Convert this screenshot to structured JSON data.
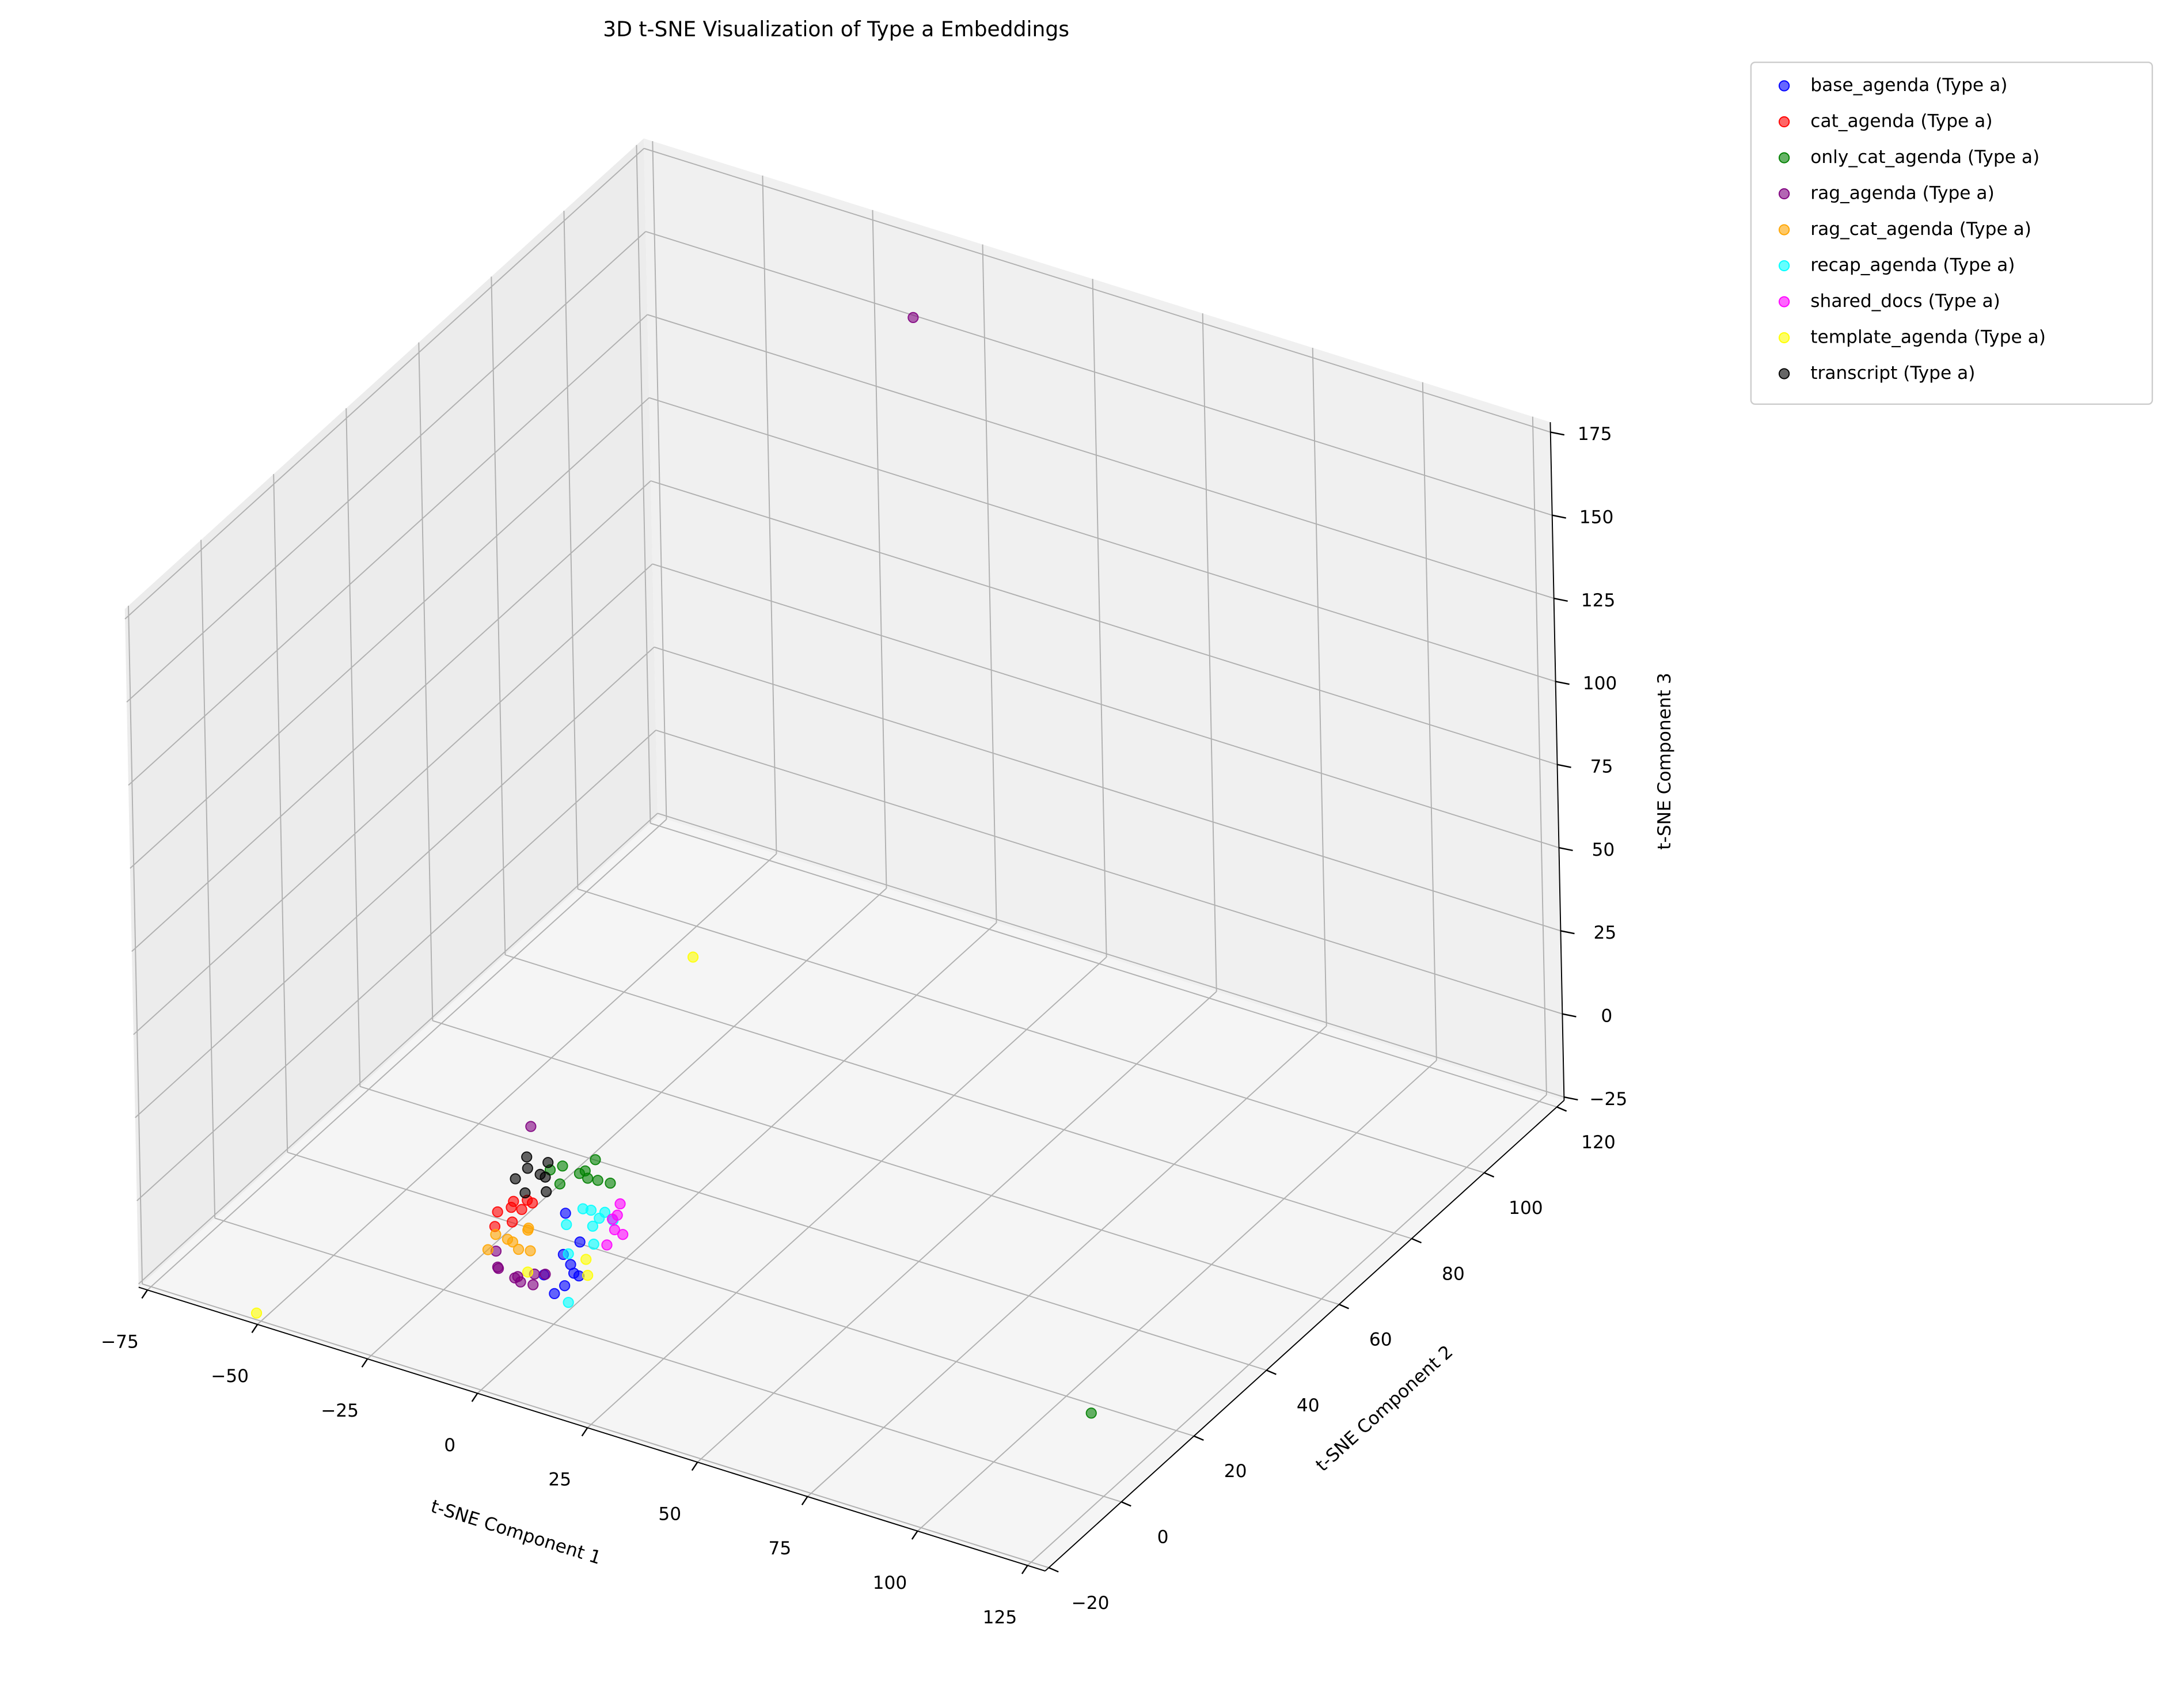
{
  "chart_data": {
    "type": "scatter3d",
    "title": "3D t-SNE Visualization of Type a Embeddings",
    "xlabel": "t-SNE Component 1",
    "ylabel": "t-SNE Component 2",
    "zlabel": "t-SNE Component 3",
    "xlim": [
      -77,
      129
    ],
    "ylim": [
      -21,
      122
    ],
    "zlim": [
      -26,
      178
    ],
    "xticks": [
      {
        "value": -75,
        "label": "−75"
      },
      {
        "value": -50,
        "label": "−50"
      },
      {
        "value": -25,
        "label": "−25"
      },
      0,
      25,
      50,
      75,
      100,
      125
    ],
    "yticks": [
      {
        "value": -20,
        "label": "−20"
      },
      0,
      20,
      40,
      60,
      80,
      100,
      120
    ],
    "zticks": [
      {
        "value": -25,
        "label": "−25"
      },
      0,
      25,
      50,
      75,
      100,
      125,
      150,
      175
    ],
    "grid": true,
    "legend": "outside upper right",
    "alpha": 0.6,
    "series": [
      {
        "name": "base_agenda (Type a)",
        "color": "#0000ff",
        "x": [
          -2,
          2,
          4,
          0,
          5,
          1,
          3,
          6,
          -1
        ],
        "y": [
          0,
          -2,
          1,
          3,
          -1,
          2,
          4,
          0,
          5
        ],
        "z": [
          -12,
          -14,
          -10,
          -8,
          -5,
          -16,
          -4,
          -9,
          2
        ]
      },
      {
        "name": "cat_agenda (Type a)",
        "color": "#ff0000",
        "x": [
          -14,
          -12,
          -10,
          -13,
          -8,
          -11,
          -6,
          -9
        ],
        "y": [
          2,
          4,
          1,
          0,
          3,
          5,
          2,
          0
        ],
        "z": [
          0,
          2,
          4,
          -2,
          5,
          -1,
          6,
          1
        ]
      },
      {
        "name": "only_cat_agenda (Type a)",
        "color": "#008000",
        "x": [
          -4,
          -1,
          2,
          0,
          4,
          -3,
          6,
          1,
          -6,
          120
        ],
        "y": [
          8,
          9,
          7,
          10,
          8,
          6,
          9,
          11,
          7,
          3
        ],
        "z": [
          12,
          10,
          14,
          8,
          11,
          9,
          10,
          13,
          11,
          -6
        ]
      },
      {
        "name": "rag_agenda (Type a)",
        "color": "#800080",
        "x": [
          -10,
          -7,
          -4,
          -12,
          -2,
          -8,
          0,
          -5,
          -9,
          -6,
          -12
        ],
        "y": [
          -3,
          -2,
          -4,
          -1,
          -3,
          0,
          -2,
          1,
          -4,
          2,
          117
        ],
        "z": [
          -10,
          -13,
          -11,
          -8,
          -12,
          -15,
          -9,
          -14,
          -9,
          29,
          156
        ]
      },
      {
        "name": "rag_cat_agenda (Type a)",
        "color": "#ffa500",
        "x": [
          -12,
          -9,
          -6,
          -11,
          -7,
          -13,
          -5,
          -8
        ],
        "y": [
          -1,
          0,
          -2,
          1,
          2,
          -2,
          0,
          3
        ],
        "z": [
          -3,
          -5,
          -4,
          -6,
          -2,
          -7,
          -6,
          -4
        ]
      },
      {
        "name": "recap_agenda (Type a)",
        "color": "#00ffff",
        "x": [
          4,
          6,
          8,
          5,
          7,
          3,
          9,
          6,
          2,
          0
        ],
        "y": [
          6,
          4,
          5,
          7,
          3,
          5,
          6,
          -3,
          2,
          4
        ],
        "z": [
          4,
          2,
          6,
          1,
          -2,
          5,
          3,
          -14,
          -6,
          0
        ]
      },
      {
        "name": "shared_docs (Type a)",
        "color": "#ff00ff",
        "x": [
          10,
          11,
          9,
          12,
          10,
          8
        ],
        "y": [
          6,
          4,
          8,
          5,
          3,
          7
        ],
        "z": [
          5,
          3,
          6,
          1,
          -1,
          2
        ]
      },
      {
        "name": "template_agenda (Type a)",
        "color": "#ffff00",
        "x": [
          -4,
          8,
          6,
          -51,
          -7
        ],
        "y": [
          -2,
          0,
          2,
          -20,
          48
        ],
        "z": [
          -10,
          -8,
          -6,
          -24,
          34
        ]
      },
      {
        "name": "transcript (Type a)",
        "color": "#000000",
        "x": [
          -12,
          -10,
          -14,
          -9,
          -11,
          -8,
          -13,
          -7
        ],
        "y": [
          8,
          9,
          7,
          10,
          6,
          8,
          9,
          7
        ],
        "z": [
          8,
          6,
          5,
          9,
          3,
          7,
          10,
          4
        ]
      }
    ]
  }
}
